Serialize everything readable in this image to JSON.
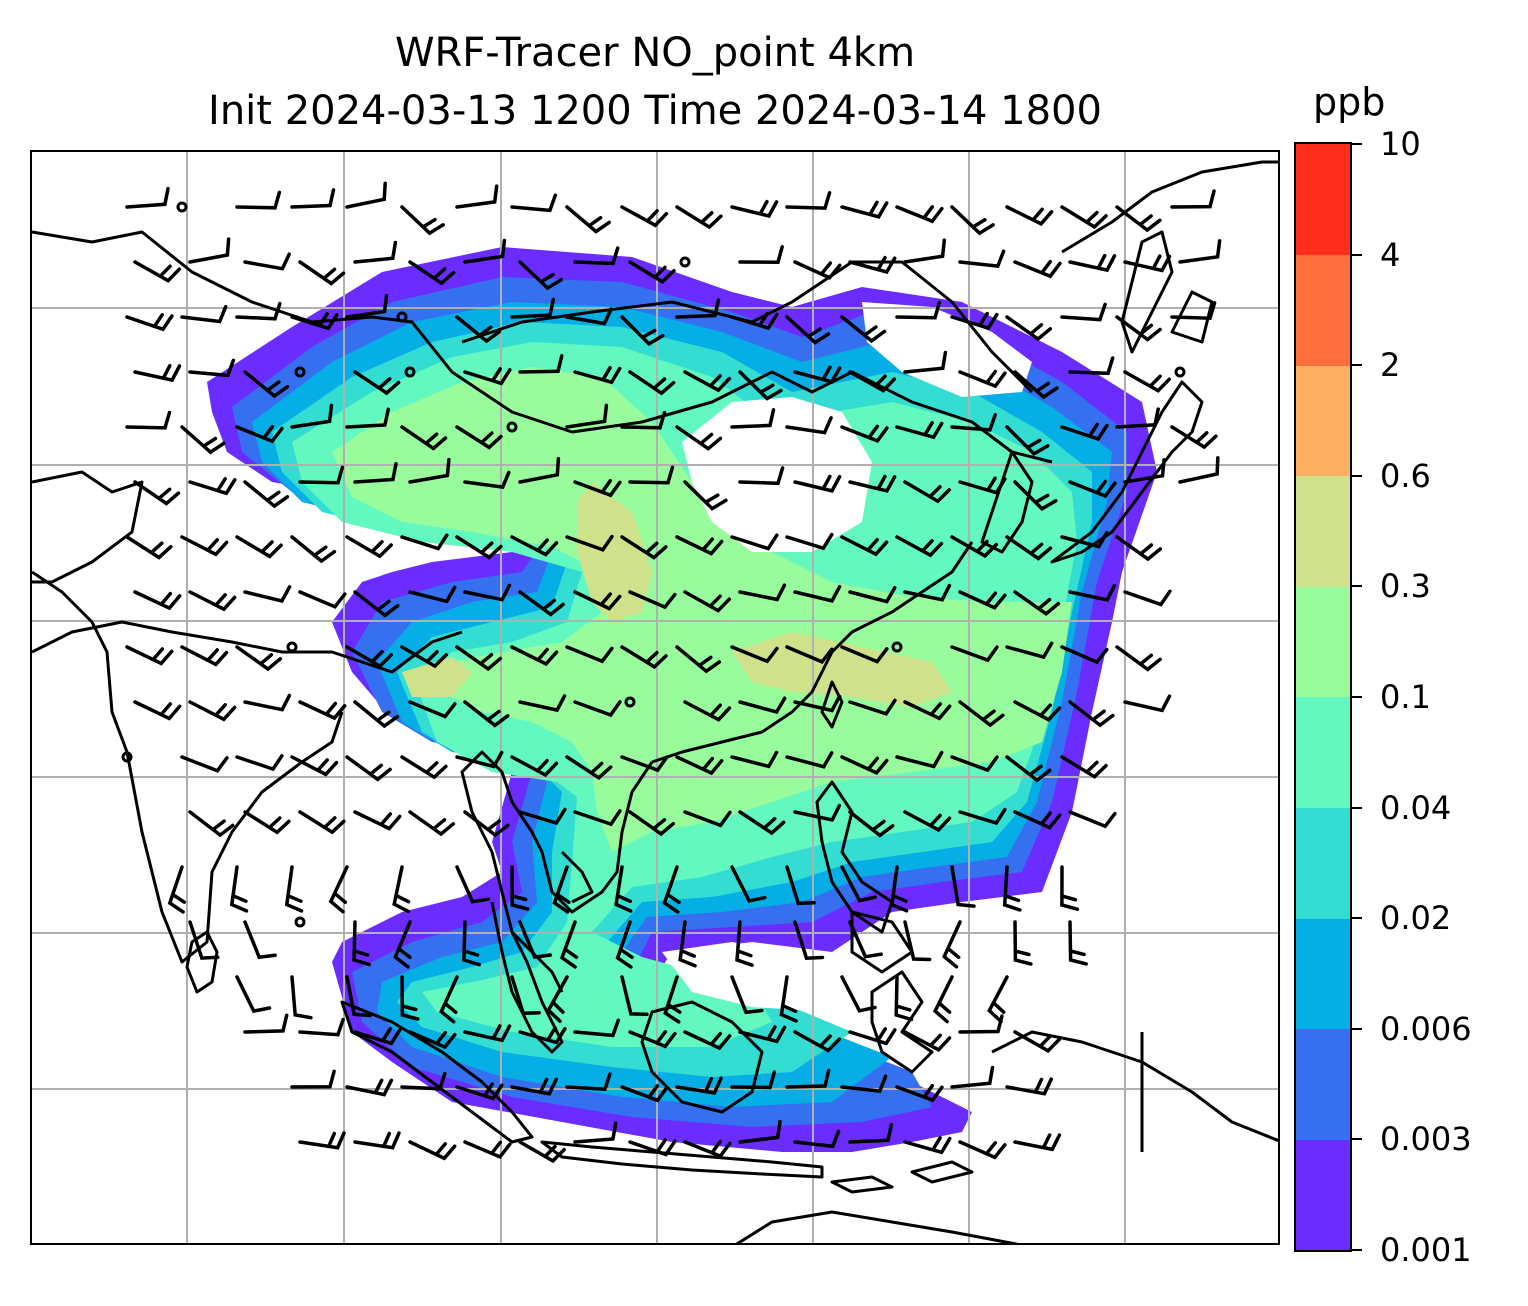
{
  "title": {
    "line1": "WRF-Tracer NO_point 4km",
    "line2": "Init 2024-03-13 1200 Time 2024-03-14 1800"
  },
  "colorbar": {
    "unit": "ppb",
    "tick_labels": [
      "0.001",
      "0.003",
      "0.006",
      "0.02",
      "0.04",
      "0.1",
      "0.3",
      "0.6",
      "2",
      "4",
      "10"
    ],
    "colors": [
      "#6a2cff",
      "#3470f0",
      "#06aee6",
      "#33ddd2",
      "#62f8c0",
      "#98fb9c",
      "#cfe18a",
      "#fdb063",
      "#ff6f3c",
      "#ff2e1c"
    ]
  },
  "map": {
    "colors": {
      "frame": "#000000",
      "grid": "#b0b0b0",
      "coast": "#000000",
      "barb": "#000000"
    },
    "gridlines": "on"
  }
}
